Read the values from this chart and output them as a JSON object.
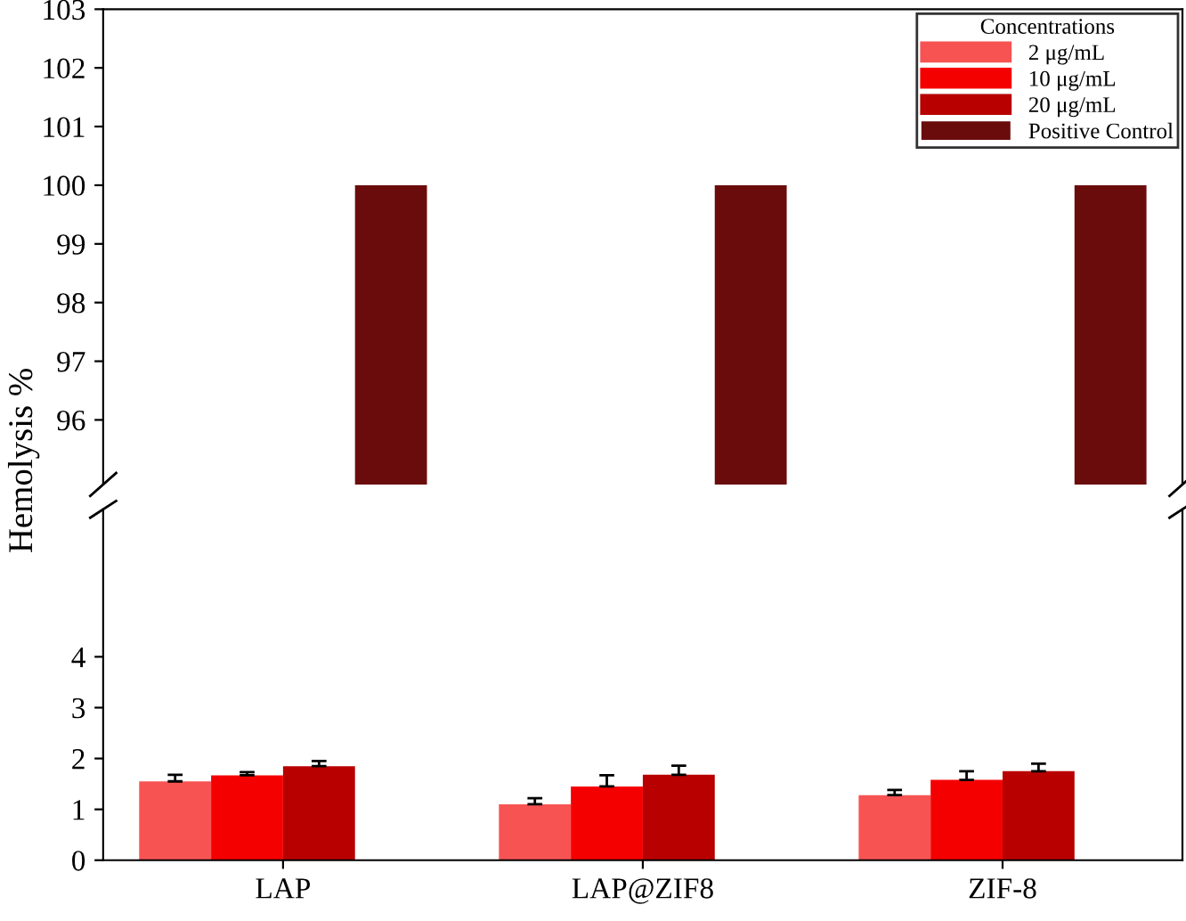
{
  "chart_data": [
    {
      "type": "bar",
      "ylabel": "Hemolysis %",
      "categories": [
        null,
        null,
        null
      ],
      "ylim": [
        94.9,
        103
      ],
      "yticks": [
        96,
        97,
        98,
        99,
        100,
        101,
        102,
        103
      ],
      "tick_labels": "y",
      "legend": "top right",
      "legend_title": "Concentrations",
      "grid": false,
      "series": [
        {
          "name": "2 μg/mL",
          "color": "#f75353",
          "values": [
            null,
            null,
            null
          ]
        },
        {
          "name": "10 μg/mL",
          "color": "#f50000",
          "values": [
            null,
            null,
            null
          ]
        },
        {
          "name": "20 μg/mL",
          "color": "#b80000",
          "values": [
            null,
            null,
            null
          ]
        },
        {
          "name": "Positive Control",
          "color": "#6b0c0c",
          "values": [
            100,
            100,
            100
          ]
        }
      ]
    },
    {
      "type": "bar",
      "categories": [
        "LAP",
        "LAP@ZIF8",
        "ZIF-8"
      ],
      "ylim": [
        0,
        6.9
      ],
      "yticks": [
        0,
        1,
        2,
        3,
        4
      ],
      "legend": false,
      "grid": false,
      "series": [
        {
          "color": "#f75353",
          "values": [
            1.55,
            1.1,
            1.28
          ],
          "errors": [
            0.13,
            0.12,
            0.1
          ]
        },
        {
          "color": "#f50000",
          "values": [
            1.67,
            1.45,
            1.58
          ],
          "errors": [
            0.06,
            0.22,
            0.17
          ]
        },
        {
          "color": "#b80000",
          "values": [
            1.85,
            1.68,
            1.75
          ],
          "errors": [
            0.1,
            0.18,
            0.15
          ]
        },
        {
          "color": "#6b0c0c",
          "values": [
            null,
            null,
            null
          ]
        }
      ]
    }
  ]
}
